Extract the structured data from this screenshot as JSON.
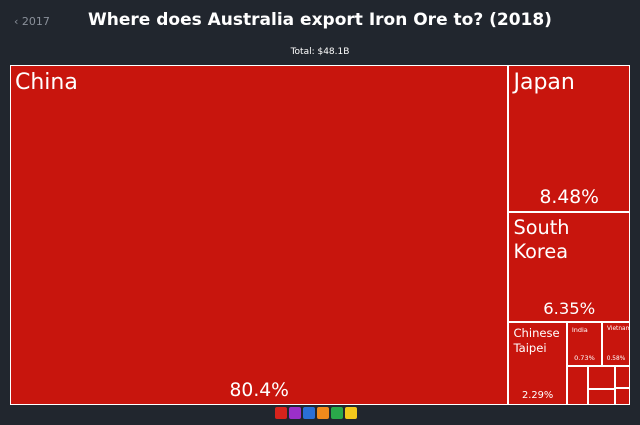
{
  "chart_data": {
    "type": "treemap",
    "title": "Where does Australia export Iron Ore to? (2018)",
    "subtitle": "Total: $48.1B",
    "back_link": "2017",
    "color": "#c8150d",
    "categories": [
      "China",
      "Japan",
      "South Korea",
      "Chinese Taipei",
      "India",
      "Vietnam",
      null,
      null,
      null,
      null,
      null
    ],
    "values": [
      80.4,
      8.48,
      6.35,
      2.29,
      0.73,
      0.58,
      0.4,
      0.3,
      0.2,
      0.15,
      0.12
    ],
    "value_labels": [
      "80.4%",
      "8.48%",
      "6.35%",
      "2.29%",
      "0.73%",
      "0.58%",
      null,
      null,
      null,
      null,
      null
    ]
  }
}
